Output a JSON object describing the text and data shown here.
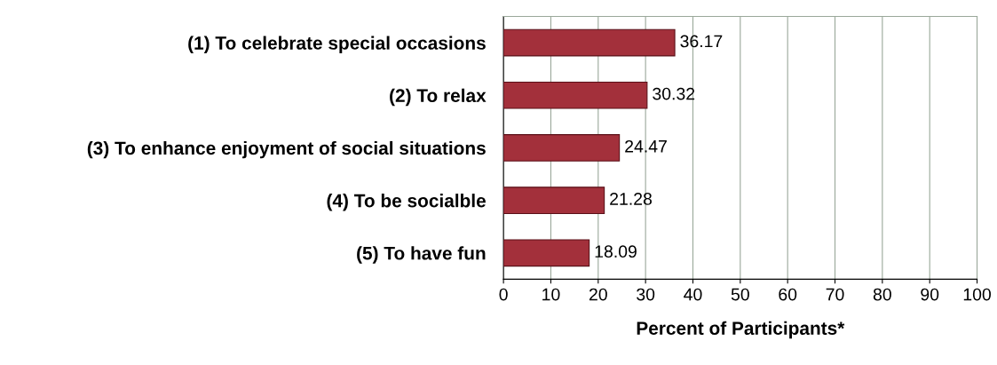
{
  "chart_data": {
    "type": "bar",
    "orientation": "horizontal",
    "xlabel": "Percent of Participants*",
    "categories": [
      "(1) To celebrate special occasions",
      "(2) To relax",
      "(3) To enhance enjoyment of social situations",
      "(4) To be socialble",
      "(5) To have fun"
    ],
    "values": [
      36.17,
      30.32,
      24.47,
      21.28,
      18.09
    ],
    "color": "#a3303b",
    "xlim": [
      0,
      100
    ],
    "xticks": [
      0,
      10,
      20,
      30,
      40,
      50,
      60,
      70,
      80,
      90,
      100
    ],
    "grid": "x",
    "data_labels": true
  }
}
